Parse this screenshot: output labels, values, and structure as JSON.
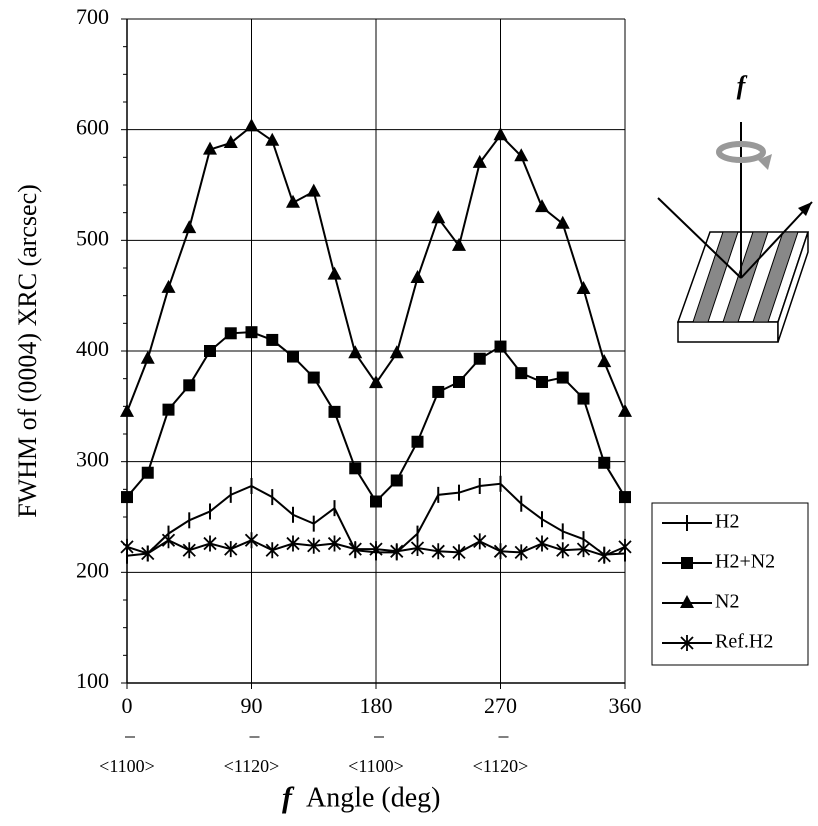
{
  "chart_data": {
    "type": "line",
    "y_label": "FWHM of  (0004) XRC (arcsec)",
    "x_label_symbol": "f",
    "x_label": "Angle (deg)",
    "diagram_label": "f",
    "x": [
      0,
      15,
      30,
      45,
      60,
      75,
      90,
      105,
      120,
      135,
      150,
      165,
      180,
      195,
      210,
      225,
      240,
      255,
      270,
      285,
      300,
      315,
      330,
      345,
      360
    ],
    "xlim": [
      0,
      360
    ],
    "xticks": [
      0,
      90,
      180,
      270,
      360
    ],
    "xtick_sublabels": [
      "<1100>",
      "<1120>",
      "<1100>",
      "<1120>"
    ],
    "ylim": [
      100,
      700
    ],
    "yticks": [
      100,
      200,
      300,
      400,
      500,
      600,
      700
    ],
    "grid": true,
    "legend": "right",
    "series": [
      {
        "name": "H2",
        "color": "#000000",
        "marker": "vline",
        "values": [
          215,
          217,
          235,
          247,
          255,
          270,
          278,
          268,
          252,
          244,
          258,
          220,
          218,
          218,
          235,
          270,
          272,
          278,
          280,
          262,
          248,
          237,
          230,
          216,
          217
        ]
      },
      {
        "name": "H2+N2",
        "color": "#000000",
        "marker": "square",
        "values": [
          268,
          290,
          347,
          369,
          400,
          416,
          417,
          410,
          395,
          376,
          345,
          294,
          264,
          283,
          318,
          363,
          372,
          393,
          404,
          380,
          372,
          376,
          357,
          299,
          268
        ]
      },
      {
        "name": "N2",
        "color": "#000000",
        "marker": "triangle",
        "values": [
          345,
          393,
          457,
          511,
          582,
          588,
          603,
          590,
          534,
          544,
          469,
          398,
          371,
          398,
          466,
          520,
          495,
          570,
          595,
          576,
          530,
          515,
          456,
          390,
          345
        ]
      },
      {
        "name": "Ref.H2",
        "color": "#000000",
        "marker": "star",
        "values": [
          223,
          217,
          229,
          220,
          226,
          221,
          229,
          220,
          226,
          224,
          226,
          221,
          221,
          219,
          222,
          219,
          218,
          228,
          219,
          218,
          226,
          220,
          221,
          215,
          223
        ]
      }
    ]
  }
}
